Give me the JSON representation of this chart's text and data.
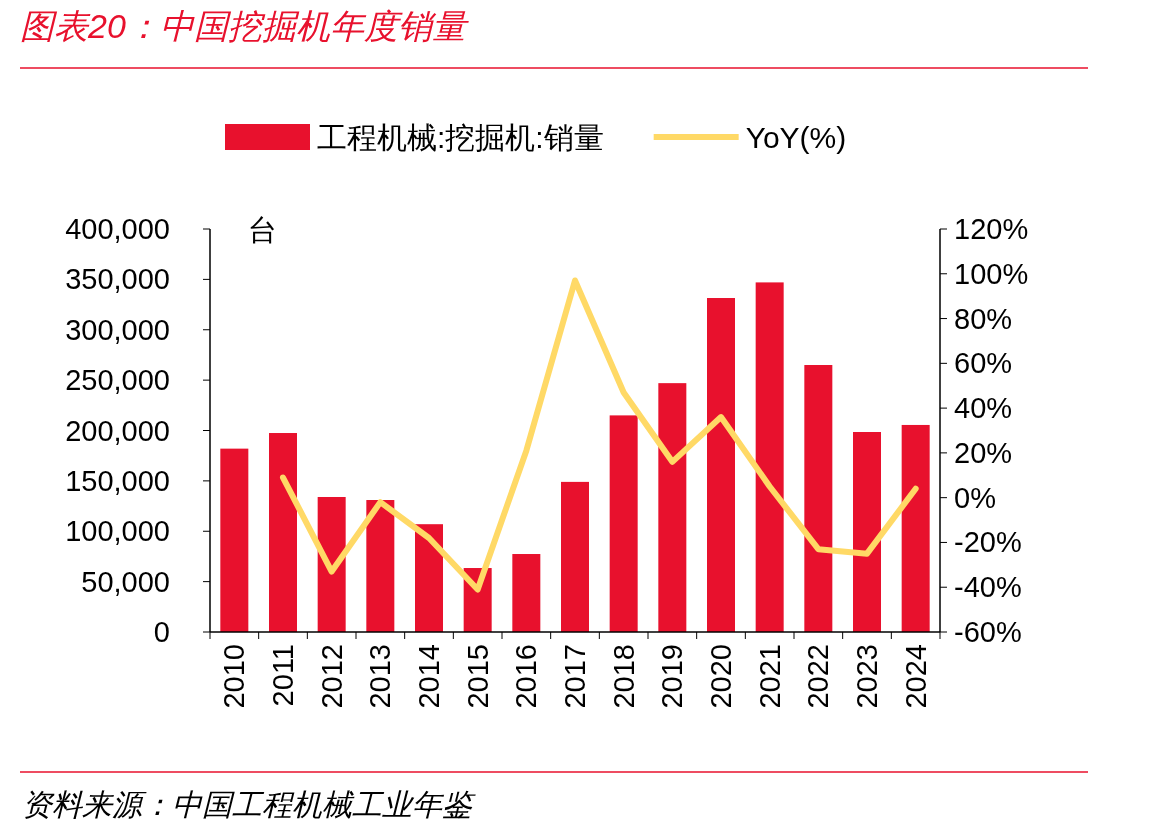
{
  "chart_data": {
    "type": "bar",
    "title": "图表20：中国挖掘机年度销量",
    "ylabel": "台",
    "categories": [
      "2010",
      "2011",
      "2012",
      "2013",
      "2014",
      "2015",
      "2016",
      "2017",
      "2018",
      "2019",
      "2020",
      "2021",
      "2022",
      "2023",
      "2024"
    ],
    "series": [
      {
        "name": "工程机械:挖掘机:销量",
        "color": "#e8112d",
        "values": [
          182000,
          197500,
          134000,
          131000,
          107000,
          63500,
          77400,
          149000,
          215000,
          247000,
          331500,
          347000,
          265000,
          198500,
          205500
        ]
      },
      {
        "name": "YoY(%)",
        "type": "line",
        "axis": "y2",
        "color": "#ffd966",
        "values": [
          null,
          9,
          -33,
          -2,
          -18,
          -41,
          21,
          97,
          47,
          16,
          36,
          5,
          -23,
          -25,
          4
        ]
      }
    ],
    "ylim": [
      0,
      400000
    ],
    "yticks": [
      {
        "value": 0,
        "label": "0"
      },
      {
        "value": 50000,
        "label": "50,000"
      },
      {
        "value": 100000,
        "label": "100,000"
      },
      {
        "value": 150000,
        "label": "150,000"
      },
      {
        "value": 200000,
        "label": "200,000"
      },
      {
        "value": 250000,
        "label": "250,000"
      },
      {
        "value": 300000,
        "label": "300,000"
      },
      {
        "value": 350000,
        "label": "350,000"
      },
      {
        "value": 400000,
        "label": "400,000"
      }
    ],
    "y2lim": [
      -60,
      120
    ],
    "y2ticks": [
      {
        "value": -60,
        "label": "-60%"
      },
      {
        "value": -40,
        "label": "-40%"
      },
      {
        "value": -20,
        "label": "-20%"
      },
      {
        "value": 0,
        "label": "0%"
      },
      {
        "value": 20,
        "label": "20%"
      },
      {
        "value": 40,
        "label": "40%"
      },
      {
        "value": 60,
        "label": "60%"
      },
      {
        "value": 80,
        "label": "80%"
      },
      {
        "value": 100,
        "label": "100%"
      },
      {
        "value": 120,
        "label": "120%"
      }
    ],
    "legend": "top",
    "grid": false,
    "annotations": [
      "资料来源：中国工程机械工业年鉴"
    ]
  }
}
